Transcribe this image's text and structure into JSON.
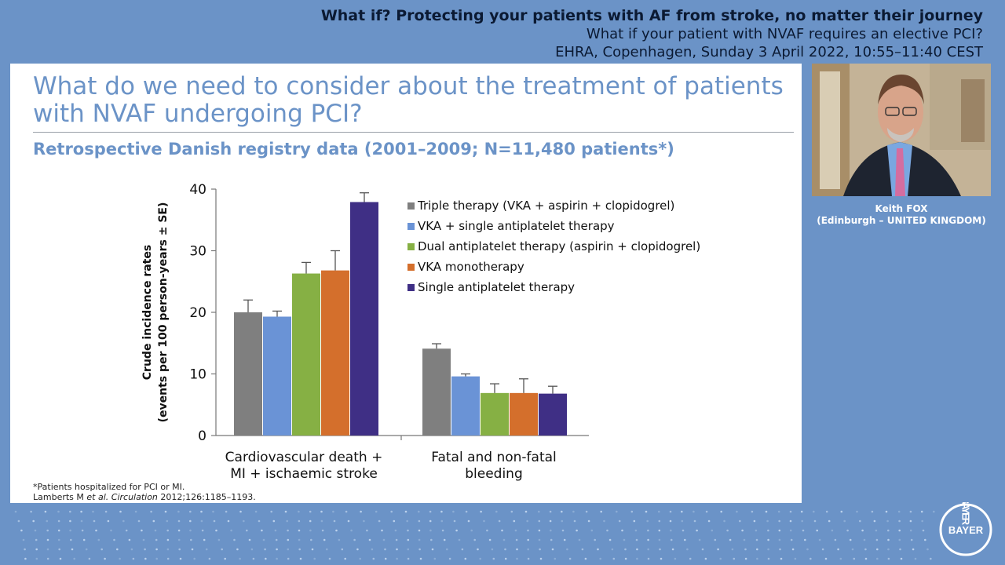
{
  "header": {
    "line1": "What if? Protecting your patients with AF from stroke, no matter their journey",
    "line2": "What if your patient with NVAF requires an elective PCI?",
    "line3": "EHRA, Copenhagen, Sunday 3 April 2022, 10:55–11:40 CEST"
  },
  "slide": {
    "title": "What do we need to consider about the treatment of patients with NVAF undergoing PCI?",
    "subtitle": "Retrospective Danish registry data (2001–2009; N=11,480 patients*)",
    "footnote": "*Patients hospitalized for PCI or MI.",
    "reference_pre": "Lamberts M ",
    "reference_italic": "et al. Circulation",
    "reference_post": " 2012;126:1185–1193."
  },
  "speaker": {
    "name": "Keith FOX",
    "affiliation": "(Edinburgh – UNITED KINGDOM)"
  },
  "logo": {
    "text": "BAYER"
  },
  "colors": {
    "background": "#6b93c7",
    "title_blue": "#6b93c7",
    "triple": "#7f7f7f",
    "vka_single": "#6a93d6",
    "dual": "#86b044",
    "vka_mono": "#d46f2c",
    "single": "#3f2f85"
  },
  "chart_data": {
    "type": "bar",
    "ylabel": "Crude incidence rates\n(events per 100 person-years ± SE)",
    "ylim": [
      0,
      40
    ],
    "yticks": [
      0,
      10,
      20,
      30,
      40
    ],
    "categories": [
      "Cardiovascular death +\nMI + ischaemic stroke",
      "Fatal and non-fatal\nbleeding"
    ],
    "legend_position": "top-right",
    "grid": false,
    "series": [
      {
        "name": "Triple therapy (VKA + aspirin + clopidogrel)",
        "color": "#7f7f7f",
        "values": [
          20.0,
          14.1
        ],
        "errors": [
          2.0,
          0.8
        ]
      },
      {
        "name": "VKA + single antiplatelet therapy",
        "color": "#6a93d6",
        "values": [
          19.3,
          9.6
        ],
        "errors": [
          0.9,
          0.4
        ]
      },
      {
        "name": "Dual antiplatelet therapy (aspirin + clopidogrel)",
        "color": "#86b044",
        "values": [
          26.3,
          6.9
        ],
        "errors": [
          1.8,
          1.5
        ]
      },
      {
        "name": "VKA monotherapy",
        "color": "#d46f2c",
        "values": [
          26.8,
          6.9
        ],
        "errors": [
          3.2,
          2.3
        ]
      },
      {
        "name": "Single antiplatelet therapy",
        "color": "#3f2f85",
        "values": [
          37.9,
          6.8
        ],
        "errors": [
          1.5,
          1.2
        ]
      }
    ]
  }
}
